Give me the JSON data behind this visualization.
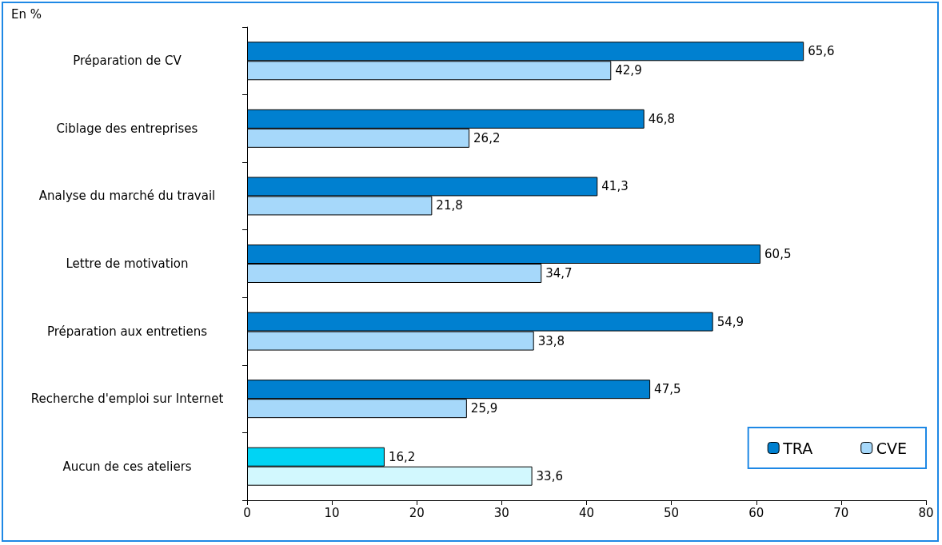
{
  "chart_data": {
    "type": "bar",
    "orientation": "horizontal",
    "annotations": [
      "En %"
    ],
    "categories": [
      "Préparation de CV",
      "Ciblage des entreprises",
      "Analyse du marché du travail",
      "Lettre de motivation",
      "Préparation aux entretiens",
      "Recherche d'emploi sur Internet",
      "Aucun de ces ateliers"
    ],
    "series": [
      {
        "name": "TRA",
        "color": "#0080d0",
        "colors": [
          "#0080d0",
          "#0080d0",
          "#0080d0",
          "#0080d0",
          "#0080d0",
          "#0080d0",
          "#00d4f4"
        ],
        "values": [
          65.6,
          46.8,
          41.3,
          60.5,
          54.9,
          47.5,
          16.2
        ],
        "value_labels": [
          "65,6",
          "46,8",
          "41,3",
          "60,5",
          "54,9",
          "47,5",
          "16,2"
        ]
      },
      {
        "name": "CVE",
        "color": "#a6d8fa",
        "colors": [
          "#a6d8fa",
          "#a6d8fa",
          "#a6d8fa",
          "#a6d8fa",
          "#a6d8fa",
          "#a6d8fa",
          "#d2f8fe"
        ],
        "values": [
          42.9,
          26.2,
          21.8,
          34.7,
          33.8,
          25.9,
          33.6
        ],
        "value_labels": [
          "42,9",
          "26,2",
          "21,8",
          "34,7",
          "33,8",
          "25,9",
          "33,6"
        ]
      }
    ],
    "xlim": [
      0,
      80
    ],
    "xticks": [
      0,
      10,
      20,
      30,
      40,
      50,
      60,
      70,
      80
    ],
    "grid": false,
    "legend": "bottom right"
  }
}
